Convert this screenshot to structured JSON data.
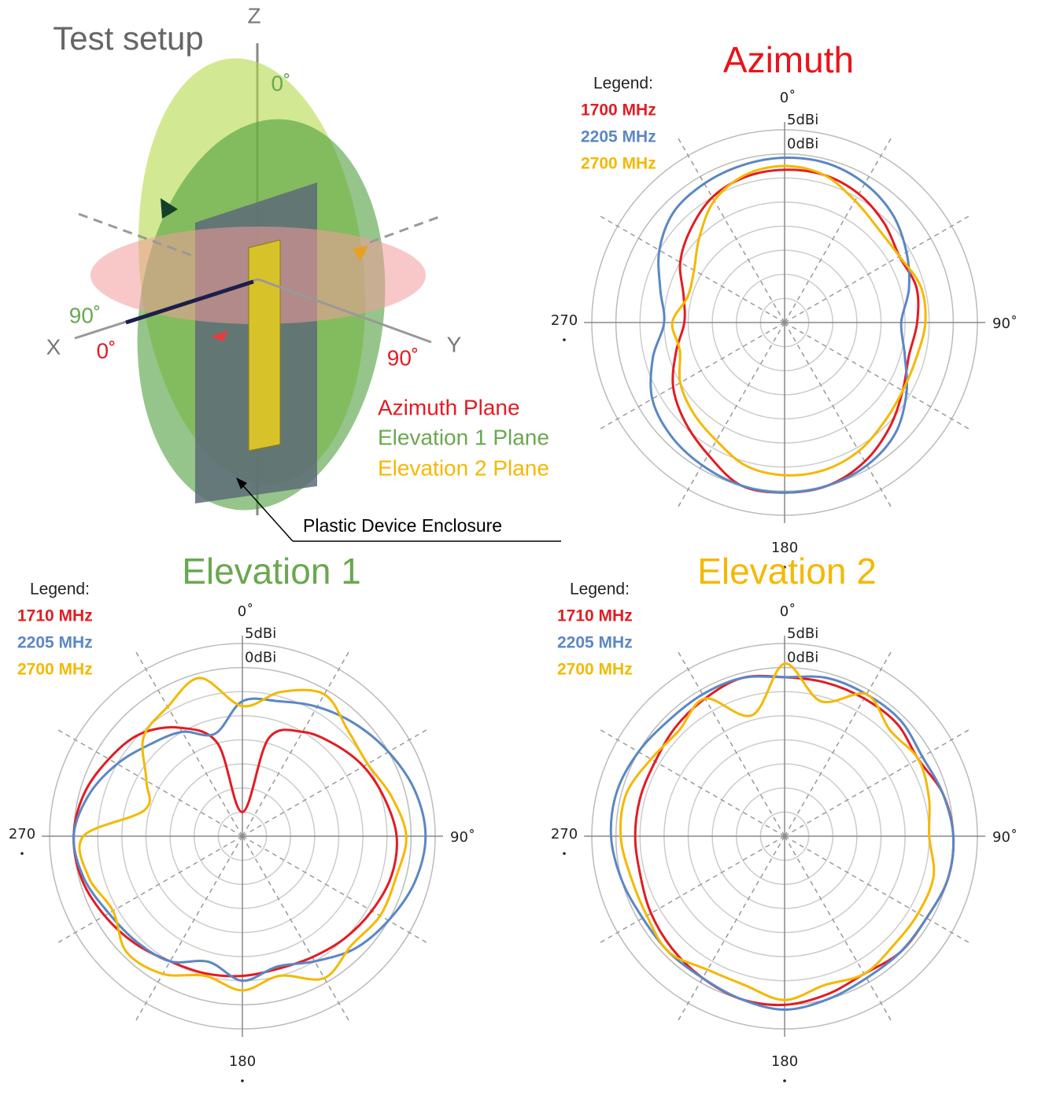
{
  "setup": {
    "title": "Test setup",
    "z_axis": "Z",
    "x_axis": "X",
    "y_axis": "Y",
    "elevation_angles": [
      "0˚",
      "90˚"
    ],
    "azimuth_angles": [
      "0˚",
      "90˚"
    ],
    "planes": [
      "Azimuth Plane",
      "Elevation 1 Plane",
      "Elevation 2 Plane"
    ],
    "callout": "Plastic Device Enclosure"
  },
  "chart_data": [
    {
      "type": "polar",
      "title": "Azimuth",
      "title_color": "#e8141c",
      "legend_title": "Legend:",
      "rlim": [
        -35,
        5
      ],
      "rticks": [
        {
          "value": 5,
          "label": "5dBi"
        },
        {
          "value": 0,
          "label": "0dBi"
        }
      ],
      "rgrid": [
        -30,
        -25,
        -20,
        -15,
        -10,
        -5
      ],
      "theta_ticks": [
        {
          "value": 0,
          "label": "0˚"
        },
        {
          "value": 90,
          "label": "90˚"
        },
        {
          "value": 180,
          "label": "180"
        },
        {
          "value": 270,
          "label": "270"
        }
      ],
      "theta_grid": [
        30,
        60,
        120,
        150,
        210,
        240,
        300,
        330
      ],
      "theta": [
        0,
        15,
        30,
        45,
        60,
        75,
        90,
        105,
        120,
        135,
        150,
        165,
        180,
        195,
        210,
        225,
        240,
        255,
        270,
        285,
        300,
        315,
        330,
        345
      ],
      "series": [
        {
          "name": "1700 MHz",
          "color": "#e31c23",
          "values": [
            -3.3,
            -3.3,
            -4.2,
            -5.8,
            -7.5,
            -6.7,
            -7.5,
            -8.3,
            -6.7,
            -4.2,
            -1.7,
            0,
            0.3,
            0,
            -3.3,
            -5.8,
            -8.3,
            -11.7,
            -14.2,
            -13.3,
            -10,
            -7.5,
            -5,
            -3.7
          ]
        },
        {
          "name": "2205 MHz",
          "color": "#5b87c4",
          "values": [
            -0.8,
            -0.8,
            -1.7,
            -3.3,
            -5.8,
            -8.3,
            -10.8,
            -9.2,
            -5.8,
            -2.5,
            -0.8,
            0,
            0.3,
            0,
            -0.8,
            -1.7,
            -3.3,
            -6.7,
            -10,
            -8.3,
            -5,
            -2.5,
            -1.7,
            -1.2
          ]
        },
        {
          "name": "2700 MHz",
          "color": "#f5b800",
          "values": [
            -2.5,
            -3.3,
            -5.8,
            -7.5,
            -7.5,
            -5.8,
            -5.8,
            -6.7,
            -6.7,
            -5.8,
            -4.2,
            -3.3,
            -3.3,
            -4.2,
            -6.7,
            -8.3,
            -10,
            -12.5,
            -11.7,
            -14.2,
            -13.3,
            -10,
            -5.8,
            -3.3
          ]
        }
      ]
    },
    {
      "type": "polar",
      "title": "Elevation 1",
      "title_color": "#6aa84f",
      "legend_title": "Legend:",
      "rlim": [
        -35,
        5
      ],
      "rticks": [
        {
          "value": 5,
          "label": "5dBi"
        },
        {
          "value": 0,
          "label": "0dBi"
        }
      ],
      "rgrid": [
        -30,
        -25,
        -20,
        -15,
        -10,
        -5
      ],
      "theta_ticks": [
        {
          "value": 0,
          "label": "0˚"
        },
        {
          "value": 90,
          "label": "90˚"
        },
        {
          "value": 180,
          "label": "180"
        },
        {
          "value": 270,
          "label": "270"
        }
      ],
      "theta_grid": [
        30,
        60,
        120,
        150,
        210,
        240,
        300,
        330
      ],
      "theta": [
        0,
        15,
        30,
        45,
        60,
        75,
        90,
        105,
        120,
        135,
        150,
        165,
        180,
        195,
        210,
        225,
        240,
        255,
        270,
        285,
        300,
        315,
        330,
        345
      ],
      "series": [
        {
          "name": "1710 MHz",
          "color": "#e31c23",
          "values": [
            -30,
            -14,
            -10,
            -8,
            -6,
            -4.5,
            -3,
            -3,
            -4,
            -5,
            -6,
            -6.5,
            -6,
            -5.5,
            -5,
            -3.5,
            -2,
            -0.5,
            0,
            -1,
            -3,
            -5,
            -9,
            -15
          ]
        },
        {
          "name": "2205 MHz",
          "color": "#5b87c4",
          "values": [
            -7,
            -6,
            -4,
            -2,
            0,
            2,
            3,
            2,
            0,
            -2,
            -5,
            -7,
            -5,
            -8,
            -5,
            -4,
            -3,
            -1,
            0,
            -2,
            -5,
            -8,
            -10,
            -13
          ]
        },
        {
          "name": "2700 MHz",
          "color": "#f5b800",
          "values": [
            -8,
            -4,
            -1,
            -4,
            -5,
            -3,
            -1,
            -2,
            -2,
            -3,
            -1,
            -5,
            -3,
            -5,
            -2,
            -1,
            -4,
            -2,
            -2,
            -14,
            -12,
            -6,
            -4,
            -1
          ]
        }
      ]
    },
    {
      "type": "polar",
      "title": "Elevation 2",
      "title_color": "#f5b800",
      "legend_title": "Legend:",
      "rlim": [
        -35,
        5
      ],
      "rticks": [
        {
          "value": 5,
          "label": "5dBi"
        },
        {
          "value": 0,
          "label": "0dBi"
        }
      ],
      "rgrid": [
        -30,
        -25,
        -20,
        -15,
        -10,
        -5
      ],
      "theta_ticks": [
        {
          "value": 0,
          "label": "0˚"
        },
        {
          "value": 90,
          "label": "90˚"
        },
        {
          "value": 180,
          "label": "180"
        },
        {
          "value": 270,
          "label": "270"
        }
      ],
      "theta_grid": [
        30,
        60,
        120,
        150,
        210,
        240,
        300,
        330
      ],
      "theta": [
        0,
        15,
        30,
        45,
        60,
        75,
        90,
        105,
        120,
        135,
        150,
        165,
        180,
        195,
        210,
        225,
        240,
        255,
        270,
        285,
        300,
        315,
        330,
        345
      ],
      "series": [
        {
          "name": "1710 MHz",
          "color": "#e31c23",
          "values": [
            -2,
            -2,
            -2,
            -2,
            -3,
            -1,
            0,
            0,
            -1,
            -1,
            -2,
            -1,
            0,
            0,
            -1,
            -2,
            -3,
            -4,
            -4,
            -4,
            -4,
            -3,
            -2,
            -1
          ]
        },
        {
          "name": "2205 MHz",
          "color": "#5b87c4",
          "values": [
            -2,
            -1,
            -1,
            -1,
            -2,
            -1,
            0,
            0,
            -1,
            -1,
            -1,
            0,
            1,
            0,
            -1,
            -1,
            -1,
            0,
            1,
            1,
            0,
            -1,
            -1,
            -1
          ]
        },
        {
          "name": "2700 MHz",
          "color": "#f5b800",
          "values": [
            0.8,
            -6,
            -1,
            -4,
            -3,
            -4,
            -5,
            -3,
            -3,
            -3,
            -2,
            -3,
            -1,
            -3,
            -3,
            -1,
            -2,
            -2,
            -1,
            -1,
            -3,
            -4,
            -2,
            -9
          ]
        }
      ]
    }
  ]
}
